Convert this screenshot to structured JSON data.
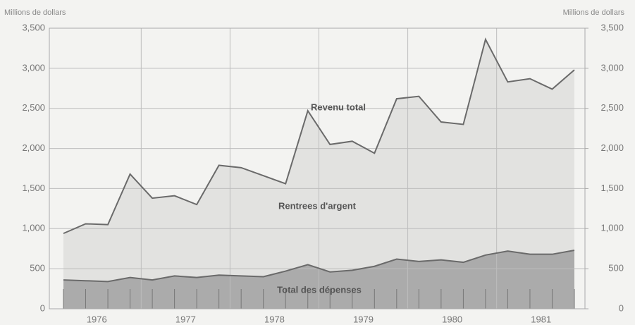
{
  "chart_data": {
    "type": "area",
    "y_axis_label": "Millions de dollars",
    "y2_axis_label": "Millions de dollars",
    "annotations": [
      "Revenu total",
      "Rentrees d'argent",
      "Total des dépenses"
    ],
    "categories": [
      "1976",
      null,
      null,
      null,
      "1977",
      null,
      null,
      null,
      "1978",
      null,
      null,
      null,
      "1979",
      null,
      null,
      null,
      "1980",
      null,
      null,
      null,
      "1981",
      null,
      null,
      null
    ],
    "series": [
      {
        "name": "Revenu total",
        "color": "#e2e2e0",
        "line_color": "#6a6a6a",
        "values": [
          940,
          1060,
          1050,
          1680,
          1380,
          1410,
          1300,
          1790,
          1760,
          1660,
          1560,
          2470,
          2050,
          2090,
          1940,
          2620,
          2650,
          2330,
          2300,
          3360,
          2830,
          2870,
          2740,
          2980
        ]
      },
      {
        "name": "Total des dépenses",
        "color": "#ababab",
        "line_color": "#6a6a6a",
        "values": [
          360,
          350,
          340,
          390,
          360,
          410,
          390,
          420,
          410,
          400,
          470,
          550,
          460,
          480,
          530,
          620,
          590,
          610,
          580,
          670,
          720,
          680,
          680,
          730
        ]
      }
    ],
    "ylim": [
      0,
      3500
    ],
    "yticks": [
      0,
      500,
      {
        "value": 1000,
        "label": "1,000"
      },
      {
        "value": 1500,
        "label": "1,500"
      },
      {
        "value": 2000,
        "label": "2,000"
      },
      {
        "value": 2500,
        "label": "2,500"
      },
      {
        "value": 3000,
        "label": "3,000"
      },
      {
        "value": 3500,
        "label": "3,500"
      }
    ],
    "y2lim": [
      0,
      3500
    ],
    "y2ticks": [
      0,
      500,
      {
        "value": 1000,
        "label": "1,000"
      },
      {
        "value": 1500,
        "label": "1,500"
      },
      {
        "value": 2000,
        "label": "2,000"
      },
      {
        "value": 2500,
        "label": "2,500"
      },
      {
        "value": 3000,
        "label": "3,000"
      },
      {
        "value": 3500,
        "label": "3,500"
      }
    ],
    "grid": true
  }
}
